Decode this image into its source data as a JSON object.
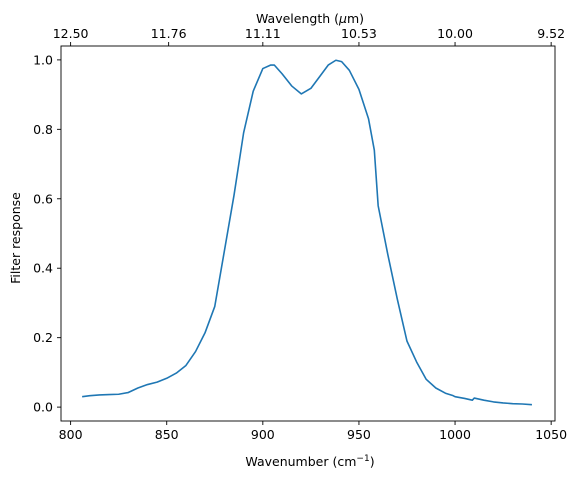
{
  "chart_data": {
    "type": "line",
    "xlabel": "Wavenumber (cm",
    "xlabel_sup": "−1",
    "xlabel_end": ")",
    "ylabel": "Filter response",
    "top_xlabel": "Wavelength (",
    "top_xlabel_mu": "μ",
    "top_xlabel_end": "m)",
    "xlim": [
      795,
      1052
    ],
    "ylim": [
      -0.04,
      1.04
    ],
    "x_ticks": [
      800,
      850,
      900,
      950,
      1000,
      1050
    ],
    "x_tick_labels": [
      "800",
      "850",
      "900",
      "950",
      "1000",
      "1050"
    ],
    "y_ticks": [
      0.0,
      0.2,
      0.4,
      0.6,
      0.8,
      1.0
    ],
    "y_tick_labels": [
      "0.0",
      "0.2",
      "0.4",
      "0.6",
      "0.8",
      "1.0"
    ],
    "top_ticks_wavenumber": [
      800,
      851,
      900,
      950,
      1000,
      1050
    ],
    "top_tick_labels": [
      "12.50",
      "11.76",
      "11.11",
      "10.53",
      "10.00",
      "9.52"
    ],
    "line_color": "#1f77b4",
    "series": [
      {
        "x": [
          806,
          810,
          815,
          820,
          825,
          830,
          835,
          840,
          845,
          850,
          855,
          860,
          865,
          870,
          875,
          880,
          885,
          890,
          895,
          900,
          904,
          906,
          910,
          915,
          920,
          925,
          930,
          934,
          938,
          941,
          945,
          950,
          955,
          958,
          960,
          965,
          970,
          975,
          980,
          985,
          990,
          995,
          999,
          1000,
          1005,
          1009,
          1010,
          1015,
          1020,
          1025,
          1030,
          1035,
          1040
        ],
        "y": [
          0.03,
          0.033,
          0.035,
          0.036,
          0.037,
          0.042,
          0.055,
          0.065,
          0.072,
          0.083,
          0.098,
          0.12,
          0.16,
          0.215,
          0.29,
          0.45,
          0.61,
          0.79,
          0.91,
          0.975,
          0.985,
          0.985,
          0.96,
          0.925,
          0.902,
          0.918,
          0.955,
          0.985,
          0.999,
          0.995,
          0.97,
          0.915,
          0.83,
          0.74,
          0.58,
          0.44,
          0.31,
          0.19,
          0.13,
          0.08,
          0.055,
          0.04,
          0.033,
          0.03,
          0.025,
          0.02,
          0.026,
          0.02,
          0.015,
          0.012,
          0.01,
          0.009,
          0.007
        ]
      }
    ]
  }
}
